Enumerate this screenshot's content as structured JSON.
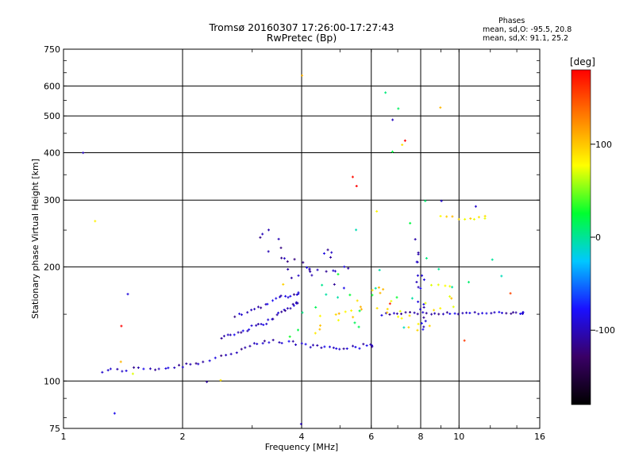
{
  "header": {
    "title": "Tromsø 20160307 17:26:00-17:27:43",
    "subtitle": "RwPretec (Bp)"
  },
  "stats": {
    "title": "Phases",
    "line_o": "mean, sd,O: -95.5, 20.8",
    "line_x": "mean, sd,X:  91.1, 25.2"
  },
  "colorbar": {
    "unit_label": "[deg]",
    "ticks": [
      {
        "value": 100,
        "label": "100"
      },
      {
        "value": 0,
        "label": "0"
      },
      {
        "value": -100,
        "label": "-100"
      }
    ],
    "range": [
      -180,
      180
    ],
    "colors": [
      "#000000",
      "#3a0066",
      "#1a10ff",
      "#00c8ff",
      "#00ff30",
      "#ffff00",
      "#ff8000",
      "#ff0000"
    ]
  },
  "chart_data": {
    "type": "scatter",
    "xlabel": "Frequency [MHz]",
    "ylabel": "Stationary phase Virtual Height [km]",
    "x_scale": "log",
    "y_scale": "log",
    "xlim": [
      1,
      16
    ],
    "ylim": [
      75,
      750
    ],
    "grid": true,
    "x_ticks": [
      {
        "value": 1,
        "label": "1"
      },
      {
        "value": 2,
        "label": "2"
      },
      {
        "value": 4,
        "label": "4"
      },
      {
        "value": 6,
        "label": "6"
      },
      {
        "value": 8,
        "label": "8"
      },
      {
        "value": 10,
        "label": "10"
      },
      {
        "value": 16,
        "label": "16"
      }
    ],
    "y_ticks": [
      {
        "value": 75,
        "label": "75"
      },
      {
        "value": 100,
        "label": "100"
      },
      {
        "value": 200,
        "label": "200"
      },
      {
        "value": 300,
        "label": "300"
      },
      {
        "value": 400,
        "label": "400"
      },
      {
        "value": 500,
        "label": "500"
      },
      {
        "value": 600,
        "label": "600"
      },
      {
        "value": 750,
        "label": "750"
      }
    ],
    "series": [
      {
        "phase_deg": -100,
        "traces": [
          {
            "x": [
              1.25,
              1.4,
              1.6,
              1.8,
              2.0,
              2.2,
              2.5,
              2.8,
              3.1,
              3.4,
              3.8,
              4.2,
              4.6,
              5.0,
              5.5,
              6.0
            ],
            "y": [
              106,
              107,
              108,
              108,
              110,
              112,
              116,
              121,
              125,
              127,
              126,
              124,
              123,
              123,
              123,
              124
            ],
            "jitter": 0.012,
            "reps": 4
          },
          {
            "x": [
              2.5,
              2.7,
              2.9,
              3.1,
              3.3,
              3.5,
              3.7,
              3.9
            ],
            "y": [
              131,
              133,
              137,
              140,
              144,
              150,
              156,
              160
            ],
            "jitter": 0.01,
            "reps": 4
          },
          {
            "x": [
              2.7,
              2.9,
              3.1,
              3.3,
              3.5,
              3.7,
              3.9
            ],
            "y": [
              148,
              152,
              156,
              161,
              166,
              168,
              170
            ],
            "jitter": 0.01,
            "reps": 3
          },
          {
            "x": [
              6.4,
              7.0,
              7.7,
              8.5,
              9.3,
              10.2,
              11.2,
              12.3,
              13.5,
              14.5
            ],
            "y": [
              150,
              151,
              151,
              151,
              151,
              151,
              151,
              151,
              151,
              151
            ],
            "jitter": 0.006,
            "reps": 4
          },
          {
            "x": [
              3.2,
              3.4,
              3.6,
              3.8,
              4.0,
              4.2,
              4.4,
              4.6,
              4.8,
              5.0
            ],
            "y": [
              230,
              225,
              215,
              205,
              195,
              190,
              200,
              210,
              205,
              190
            ],
            "jitter": 0.07,
            "reps": 3
          },
          {
            "x": [
              7.8,
              7.9,
              8.0,
              8.0,
              8.1
            ],
            "y": [
              230,
              200,
              180,
              160,
              140
            ],
            "jitter": 0.03,
            "reps": 4
          },
          {
            "x": [
              1.12,
              1.35,
              1.45,
              2.3,
              3.3,
              4.0,
              6.8,
              9.0,
              11.0
            ],
            "y": [
              400,
              82,
              170,
              100,
              250,
              77,
              490,
              300,
              290
            ],
            "jitter": 0.005,
            "reps": 1
          }
        ]
      },
      {
        "phase_deg": 90,
        "traces": [
          {
            "x": [
              4.3,
              4.6,
              5.0,
              5.4,
              5.8,
              6.2,
              6.6,
              7.0,
              7.5,
              8.0,
              8.5,
              9.0,
              9.5
            ],
            "y": [
              135,
              140,
              155,
              150,
              165,
              170,
              165,
              150,
              145,
              140,
              160,
              175,
              165
            ],
            "jitter": 0.06,
            "reps": 3
          },
          {
            "x": [
              9.0,
              9.6,
              10.4,
              11.0,
              11.6
            ],
            "y": [
              270,
              270,
              270,
              270,
              270
            ],
            "jitter": 0.01,
            "reps": 2
          },
          {
            "x": [
              1.2,
              1.4,
              1.5,
              2.5,
              3.6,
              4.0,
              6.2,
              7.2,
              9.0
            ],
            "y": [
              265,
              112,
              105,
              100,
              180,
              640,
              280,
              420,
              525
            ],
            "jitter": 0.005,
            "reps": 1
          }
        ]
      },
      {
        "phase_deg": 10,
        "traces": [
          {
            "x": [
              3.8,
              4.1,
              4.5,
              4.8,
              5.2,
              5.6,
              6.0,
              6.5,
              7.2,
              8.5,
              9.5,
              12.5
            ],
            "y": [
              130,
              150,
              175,
              185,
              160,
              135,
              170,
              190,
              140,
              210,
              175,
              200
            ],
            "jitter": 0.05,
            "reps": 2
          },
          {
            "x": [
              6.5,
              6.8,
              7.0,
              7.5,
              8.2,
              5.5
            ],
            "y": [
              575,
              400,
              520,
              260,
              300,
              250
            ],
            "jitter": 0.005,
            "reps": 1
          }
        ]
      },
      {
        "phase_deg": 170,
        "traces": [
          {
            "x": [
              1.4,
              5.4,
              5.5,
              6.7,
              7.3,
              10.3,
              13.5
            ],
            "y": [
              140,
              345,
              325,
              160,
              430,
              128,
              170
            ],
            "jitter": 0.005,
            "reps": 1
          }
        ]
      }
    ]
  }
}
